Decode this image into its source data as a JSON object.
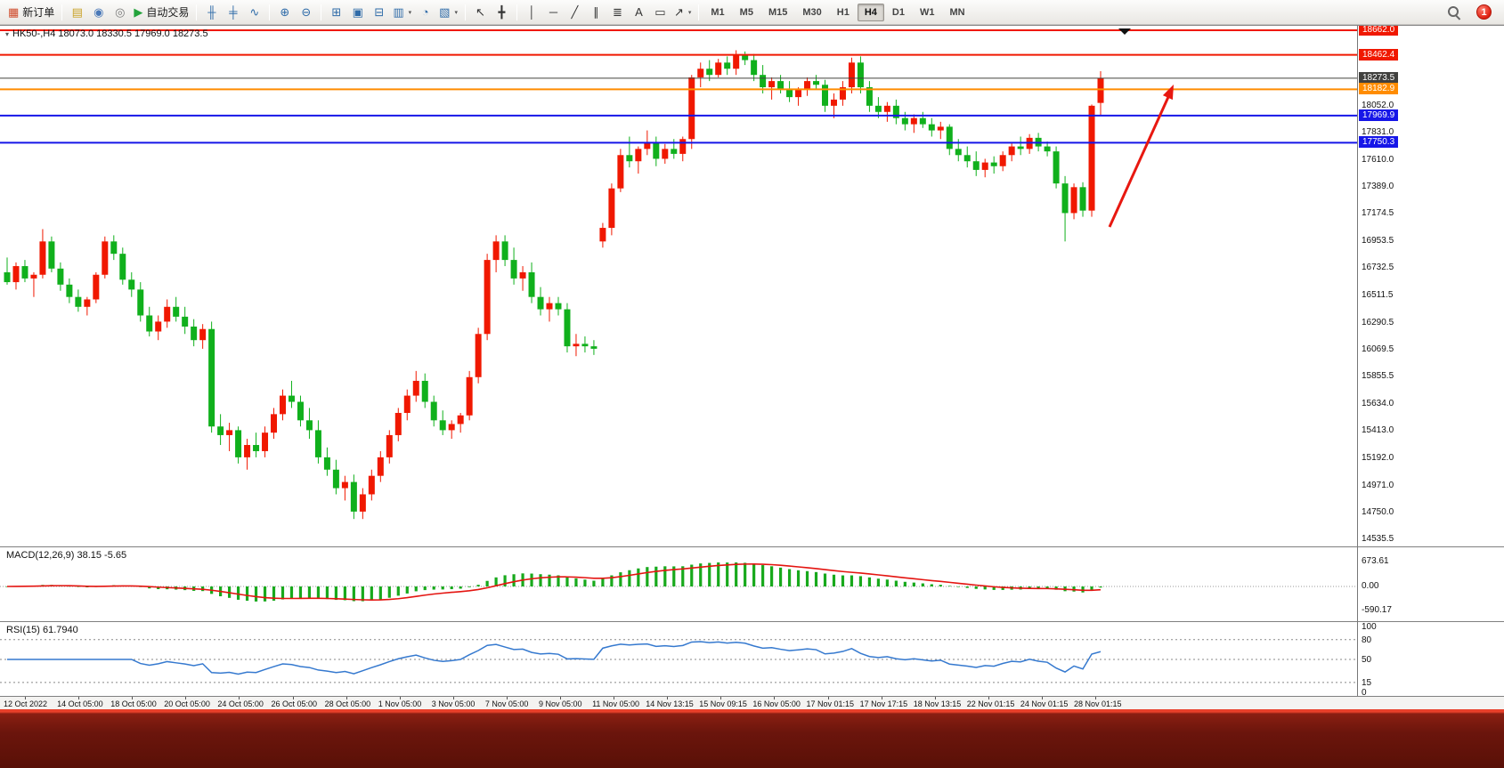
{
  "toolbar": {
    "groups": [
      {
        "items": [
          {
            "name": "new-order-button",
            "glyph": "▦",
            "glyph_color": "#cf4a2a",
            "label": "新订单"
          }
        ]
      },
      {
        "items": [
          {
            "name": "market-watch-icon-button",
            "glyph": "▤",
            "glyph_color": "#c9a227"
          },
          {
            "name": "data-window-icon-button",
            "glyph": "◉",
            "glyph_color": "#4a78b8"
          },
          {
            "name": "navigator-icon-button",
            "glyph": "◎",
            "glyph_color": "#7a7a7a"
          },
          {
            "name": "auto-trading-button",
            "glyph": "▶",
            "glyph_color": "#23a33b",
            "label": "自动交易"
          }
        ]
      },
      {
        "items": [
          {
            "name": "bar-chart-type-button",
            "glyph": "╫",
            "glyph_color": "#2f6ba8"
          },
          {
            "name": "candlestick-type-button",
            "glyph": "╪",
            "glyph_color": "#2f6ba8"
          },
          {
            "name": "line-chart-type-button",
            "glyph": "∿",
            "glyph_color": "#2f6ba8"
          }
        ]
      },
      {
        "items": [
          {
            "name": "zoom-in-button",
            "glyph": "⊕",
            "glyph_color": "#2f6ba8"
          },
          {
            "name": "zoom-out-button",
            "glyph": "⊖",
            "glyph_color": "#2f6ba8"
          }
        ]
      },
      {
        "items": [
          {
            "name": "tile-windows-button",
            "glyph": "⊞",
            "glyph_color": "#2f6ba8"
          },
          {
            "name": "indicators-button",
            "glyph": "▣",
            "glyph_color": "#2f6ba8"
          },
          {
            "name": "cascade-windows-button",
            "glyph": "⊟",
            "glyph_color": "#2f6ba8"
          },
          {
            "name": "new-chart-button",
            "glyph": "▥",
            "glyph_color": "#2f6ba8",
            "caret": "▾"
          },
          {
            "name": "period-cycle-button",
            "glyph": "◔",
            "glyph_color": "#2f6ba8"
          },
          {
            "name": "snapshot-button",
            "glyph": "▧",
            "glyph_color": "#2f6ba8",
            "caret": "▾"
          }
        ]
      },
      {
        "items": [
          {
            "name": "cursor-button",
            "glyph": "↖",
            "glyph_color": "#333"
          },
          {
            "name": "crosshair-button",
            "glyph": "╋",
            "glyph_color": "#333"
          }
        ]
      },
      {
        "items": [
          {
            "name": "vertical-line-button",
            "glyph": "│",
            "glyph_color": "#333"
          },
          {
            "name": "horizontal-line-button",
            "glyph": "─",
            "glyph_color": "#333"
          },
          {
            "name": "trendline-button",
            "glyph": "╱",
            "glyph_color": "#333"
          },
          {
            "name": "equidistant-channel-button",
            "glyph": "∥",
            "glyph_color": "#333"
          },
          {
            "name": "fibonacci-button",
            "glyph": "≣",
            "glyph_color": "#333"
          },
          {
            "name": "text-button",
            "glyph": "A",
            "glyph_color": "#333"
          },
          {
            "name": "text-label-button",
            "glyph": "▭",
            "glyph_color": "#333"
          },
          {
            "name": "arrow-objects-button",
            "glyph": "↗",
            "glyph_color": "#333",
            "caret": "▾"
          }
        ]
      },
      {
        "timeframes": true,
        "items": [
          {
            "name": "timeframe-m1",
            "label": "M1"
          },
          {
            "name": "timeframe-m5",
            "label": "M5"
          },
          {
            "name": "timeframe-m15",
            "label": "M15"
          },
          {
            "name": "timeframe-m30",
            "label": "M30"
          },
          {
            "name": "timeframe-h1",
            "label": "H1"
          },
          {
            "name": "timeframe-h4",
            "label": "H4",
            "active": true
          },
          {
            "name": "timeframe-d1",
            "label": "D1"
          },
          {
            "name": "timeframe-w1",
            "label": "W1"
          },
          {
            "name": "timeframe-mn",
            "label": "MN"
          }
        ]
      }
    ],
    "notification_count": "1"
  },
  "chart": {
    "title_marker": "▾",
    "title": "HK50-,H4  18073.0 18330.5 17969.0 18273.5",
    "symbol": "HK50-",
    "period": "H4",
    "ohlc": {
      "open": "18073.0",
      "high": "18330.5",
      "low": "17969.0",
      "close": "18273.5"
    },
    "price_max": 18662.0,
    "price_min": 14535.5,
    "bull_color": "#f01800",
    "bear_color": "#10b01c",
    "plain_scale_labels": [
      "18052.0",
      "17831.0",
      "17610.0",
      "17389.0",
      "17174.5",
      "16953.5",
      "16732.5",
      "16511.5",
      "16290.5",
      "16069.5",
      "15855.5",
      "15634.0",
      "15413.0",
      "15192.0",
      "14971.0",
      "14750.0",
      "14535.5"
    ],
    "level_lines": [
      {
        "label": "18662.0",
        "price": 18662.0,
        "color": "#f01800",
        "width": 2
      },
      {
        "label": "18462.4",
        "price": 18462.4,
        "color": "#f01800",
        "width": 2
      },
      {
        "label": "18273.5",
        "price": 18273.5,
        "color": "#40403e",
        "width": 1
      },
      {
        "label": "18182.9",
        "price": 18182.9,
        "color": "#ff8c00",
        "width": 2
      },
      {
        "label": "17969.9",
        "price": 17969.9,
        "color": "#1616e8",
        "width": 2
      },
      {
        "label": "17750.3",
        "price": 17750.3,
        "color": "#1616e8",
        "width": 2
      }
    ],
    "annotation_arrow_color": "#e81810",
    "candles": [
      [
        16700,
        16820,
        16600,
        16620
      ],
      [
        16620,
        16780,
        16560,
        16750
      ],
      [
        16750,
        16800,
        16620,
        16650
      ],
      [
        16650,
        16700,
        16500,
        16680
      ],
      [
        16680,
        17050,
        16650,
        16950
      ],
      [
        16950,
        16990,
        16700,
        16730
      ],
      [
        16730,
        16780,
        16550,
        16600
      ],
      [
        16600,
        16650,
        16450,
        16500
      ],
      [
        16500,
        16560,
        16380,
        16420
      ],
      [
        16420,
        16500,
        16350,
        16480
      ],
      [
        16480,
        16700,
        16450,
        16680
      ],
      [
        16680,
        16990,
        16650,
        16950
      ],
      [
        16950,
        17000,
        16800,
        16850
      ],
      [
        16850,
        16900,
        16600,
        16640
      ],
      [
        16640,
        16700,
        16500,
        16560
      ],
      [
        16560,
        16620,
        16300,
        16350
      ],
      [
        16350,
        16420,
        16180,
        16220
      ],
      [
        16220,
        16350,
        16150,
        16300
      ],
      [
        16300,
        16480,
        16250,
        16420
      ],
      [
        16420,
        16500,
        16300,
        16340
      ],
      [
        16340,
        16420,
        16200,
        16260
      ],
      [
        16260,
        16320,
        16100,
        16150
      ],
      [
        16150,
        16280,
        16080,
        16240
      ],
      [
        16240,
        16300,
        15400,
        15450
      ],
      [
        15450,
        15550,
        15300,
        15380
      ],
      [
        15380,
        15480,
        15250,
        15420
      ],
      [
        15420,
        15450,
        15150,
        15200
      ],
      [
        15200,
        15350,
        15100,
        15300
      ],
      [
        15300,
        15400,
        15200,
        15250
      ],
      [
        15250,
        15450,
        15200,
        15400
      ],
      [
        15400,
        15600,
        15350,
        15550
      ],
      [
        15550,
        15750,
        15500,
        15700
      ],
      [
        15700,
        15820,
        15600,
        15650
      ],
      [
        15650,
        15700,
        15450,
        15500
      ],
      [
        15500,
        15600,
        15350,
        15420
      ],
      [
        15420,
        15500,
        15150,
        15200
      ],
      [
        15200,
        15280,
        15050,
        15100
      ],
      [
        15100,
        15180,
        14900,
        14950
      ],
      [
        14950,
        15050,
        14850,
        15000
      ],
      [
        15000,
        15060,
        14700,
        14760
      ],
      [
        14760,
        14950,
        14700,
        14900
      ],
      [
        14900,
        15100,
        14850,
        15050
      ],
      [
        15050,
        15250,
        15000,
        15200
      ],
      [
        15200,
        15420,
        15150,
        15380
      ],
      [
        15380,
        15600,
        15330,
        15560
      ],
      [
        15560,
        15750,
        15500,
        15700
      ],
      [
        15700,
        15900,
        15650,
        15820
      ],
      [
        15820,
        15880,
        15600,
        15650
      ],
      [
        15650,
        15700,
        15450,
        15500
      ],
      [
        15500,
        15580,
        15380,
        15420
      ],
      [
        15420,
        15500,
        15350,
        15470
      ],
      [
        15470,
        15560,
        15400,
        15540
      ],
      [
        15540,
        15900,
        15500,
        15850
      ],
      [
        15850,
        16250,
        15800,
        16200
      ],
      [
        16200,
        16850,
        16150,
        16800
      ],
      [
        16800,
        17000,
        16700,
        16950
      ],
      [
        16950,
        17000,
        16750,
        16800
      ],
      [
        16800,
        16900,
        16600,
        16650
      ],
      [
        16650,
        16750,
        16550,
        16700
      ],
      [
        16700,
        16780,
        16450,
        16500
      ],
      [
        16500,
        16580,
        16350,
        16400
      ],
      [
        16400,
        16500,
        16300,
        16450
      ],
      [
        16450,
        16500,
        16350,
        16400
      ],
      [
        16400,
        16450,
        16050,
        16100
      ],
      [
        16100,
        16200,
        16020,
        16120
      ],
      [
        16120,
        16180,
        16050,
        16100
      ],
      [
        16100,
        16150,
        16030,
        16080
      ],
      [
        16950,
        17100,
        16900,
        17060
      ],
      [
        17060,
        17420,
        17000,
        17380
      ],
      [
        17380,
        17700,
        17350,
        17650
      ],
      [
        17650,
        17800,
        17550,
        17600
      ],
      [
        17600,
        17720,
        17500,
        17700
      ],
      [
        17700,
        17850,
        17650,
        17750
      ],
      [
        17750,
        17800,
        17560,
        17620
      ],
      [
        17620,
        17740,
        17580,
        17700
      ],
      [
        17700,
        17780,
        17620,
        17660
      ],
      [
        17660,
        17800,
        17600,
        17780
      ],
      [
        17780,
        18300,
        17700,
        18280
      ],
      [
        18280,
        18400,
        18200,
        18350
      ],
      [
        18350,
        18420,
        18250,
        18300
      ],
      [
        18300,
        18430,
        18280,
        18400
      ],
      [
        18400,
        18450,
        18300,
        18350
      ],
      [
        18350,
        18500,
        18300,
        18460
      ],
      [
        18460,
        18490,
        18380,
        18420
      ],
      [
        18420,
        18470,
        18250,
        18300
      ],
      [
        18300,
        18380,
        18150,
        18200
      ],
      [
        18200,
        18280,
        18100,
        18250
      ],
      [
        18250,
        18300,
        18150,
        18180
      ],
      [
        18180,
        18250,
        18080,
        18120
      ],
      [
        18120,
        18200,
        18050,
        18180
      ],
      [
        18180,
        18280,
        18130,
        18250
      ],
      [
        18250,
        18300,
        18180,
        18220
      ],
      [
        18220,
        18260,
        18000,
        18050
      ],
      [
        18050,
        18150,
        17950,
        18100
      ],
      [
        18100,
        18250,
        18050,
        18200
      ],
      [
        18200,
        18440,
        18150,
        18400
      ],
      [
        18400,
        18450,
        18150,
        18200
      ],
      [
        18200,
        18250,
        18000,
        18050
      ],
      [
        18050,
        18120,
        17950,
        18000
      ],
      [
        18000,
        18080,
        17920,
        18050
      ],
      [
        18050,
        18100,
        17900,
        17950
      ],
      [
        17950,
        18000,
        17850,
        17900
      ],
      [
        17900,
        17980,
        17830,
        17950
      ],
      [
        17950,
        18000,
        17870,
        17900
      ],
      [
        17900,
        17950,
        17800,
        17850
      ],
      [
        17850,
        17920,
        17780,
        17880
      ],
      [
        17880,
        17900,
        17650,
        17700
      ],
      [
        17700,
        17780,
        17600,
        17650
      ],
      [
        17650,
        17720,
        17550,
        17600
      ],
      [
        17600,
        17680,
        17480,
        17530
      ],
      [
        17530,
        17620,
        17470,
        17590
      ],
      [
        17590,
        17640,
        17500,
        17560
      ],
      [
        17560,
        17680,
        17520,
        17650
      ],
      [
        17650,
        17750,
        17600,
        17720
      ],
      [
        17720,
        17800,
        17650,
        17700
      ],
      [
        17700,
        17820,
        17660,
        17790
      ],
      [
        17790,
        17830,
        17680,
        17720
      ],
      [
        17720,
        17760,
        17640,
        17680
      ],
      [
        17680,
        17720,
        17380,
        17420
      ],
      [
        17420,
        17480,
        16950,
        17180
      ],
      [
        17180,
        17420,
        17130,
        17390
      ],
      [
        17390,
        17430,
        17150,
        17200
      ],
      [
        17200,
        18060,
        17150,
        18050
      ],
      [
        18073,
        18330.5,
        17969,
        18273.5
      ]
    ]
  },
  "macd": {
    "title": "MACD(12,26,9) 38.15 -5.65",
    "scale_labels": [
      "673.61",
      "0.00",
      "-590.17"
    ],
    "histogram_color": "#18a91c",
    "signal_color": "#e41410"
  },
  "rsi": {
    "title": "RSI(15) 61.7940",
    "scale_labels": [
      "100",
      "80",
      "50",
      "15",
      "0"
    ],
    "levels": [
      80,
      50,
      15
    ],
    "line_color": "#3579cf"
  },
  "time_axis": {
    "labels": [
      "12 Oct 2022",
      "14 Oct 05:00",
      "18 Oct 05:00",
      "20 Oct 05:00",
      "24 Oct 05:00",
      "26 Oct 05:00",
      "28 Oct 05:00",
      "1 Nov 05:00",
      "3 Nov 05:00",
      "7 Nov 05:00",
      "9 Nov 05:00",
      "11 Nov 05:00",
      "14 Nov 13:15",
      "15 Nov 09:15",
      "16 Nov 05:00",
      "17 Nov 01:15",
      "17 Nov 17:15",
      "18 Nov 13:15",
      "22 Nov 01:15",
      "24 Nov 01:15",
      "28 Nov 01:15"
    ]
  }
}
